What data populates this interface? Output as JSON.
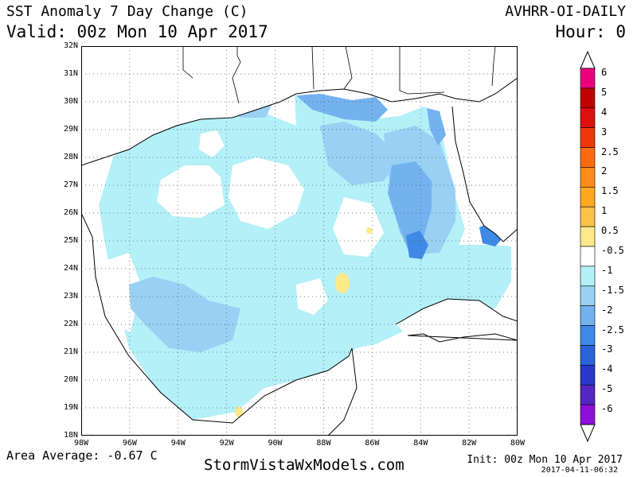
{
  "header": {
    "title": "SST Anomaly 7 Day Change (C)",
    "valid": "Valid: 00z Mon 10 Apr 2017",
    "source": "AVHRR-OI-DAILY",
    "hour": "Hour: 0"
  },
  "footer": {
    "area_average": "Area Average: -0.67 C",
    "site": "StormVistaWxModels.com",
    "init": "Init: 00z Mon 10 Apr 2017",
    "stamp": "2017-04-11-06:32"
  },
  "map": {
    "lat_labels": [
      "32N",
      "31N",
      "30N",
      "29N",
      "28N",
      "27N",
      "26N",
      "25N",
      "24N",
      "23N",
      "22N",
      "21N",
      "20N",
      "19N",
      "18N"
    ],
    "lon_labels": [
      "98W",
      "96W",
      "94W",
      "92W",
      "90W",
      "88W",
      "86W",
      "84W",
      "82W",
      "80W"
    ],
    "lat_range": [
      18,
      32
    ],
    "lon_range": [
      -98,
      -80
    ],
    "gridlines": "dotted"
  },
  "colorbar": {
    "labels": [
      "6",
      "5",
      "4",
      "3",
      "2.5",
      "2",
      "1.5",
      "1",
      "0.5",
      "-0.5",
      "-1",
      "-1.5",
      "-2",
      "-2.5",
      "-3",
      "-4",
      "-5",
      "-6"
    ],
    "colors": [
      "#e8007c",
      "#c00000",
      "#dd1010",
      "#ee3a0a",
      "#ff6a10",
      "#ff8c1a",
      "#ffa820",
      "#fcc24a",
      "#fde88a",
      "#ffffff",
      "#b4f0f8",
      "#9ad0f4",
      "#74b2ef",
      "#3f8ae6",
      "#2a62d8",
      "#2838c8",
      "#5226c0",
      "#8c10d8"
    ]
  },
  "icons": {
    "colorbar_top": "triangle-up-icon",
    "colorbar_bottom": "triangle-down-icon"
  }
}
